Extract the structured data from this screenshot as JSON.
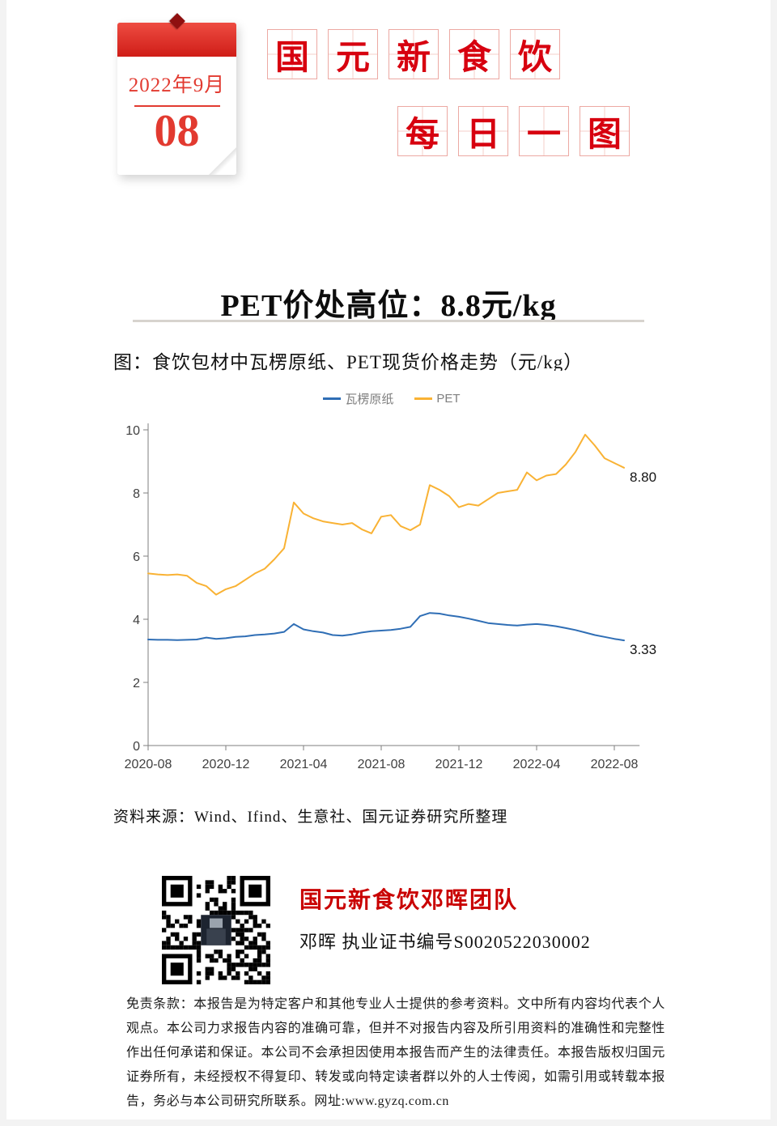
{
  "page": {
    "calendar": {
      "month_label": "2022年9月",
      "day": "08"
    },
    "brand_stamp": {
      "row1": [
        "国",
        "元",
        "新",
        "食",
        "饮"
      ],
      "row2": [
        "每",
        "日",
        "一",
        "图"
      ]
    },
    "headline": "PET价处高位：8.8元/kg",
    "source": "资料来源：Wind、Ifind、生意社、国元证券研究所整理",
    "team": {
      "title": "国元新食饮邓晖团队",
      "credential": "邓晖 执业证书编号S0020522030002",
      "website": "www.gyzq.com.cn"
    },
    "disclaimer": "免责条款：本报告是为特定客户和其他专业人士提供的参考资料。文中所有内容均代表个人观点。本公司力求报告内容的准确可靠，但并不对报告内容及所引用资料的准确性和完整性作出任何承诺和保证。本公司不会承担因使用本报告而产生的法律责任。本报告版权归国元证券所有，未经授权不得复印、转发或向特定读者群以外的人士传阅，如需引用或转载本报告，务必与本公司研究所联系。网址:www.gyzq.com.cn"
  },
  "chart_data": {
    "type": "line",
    "title": "图：食饮包材中瓦楞原纸、PET现货价格走势（元/kg）",
    "ylabel": "元/kg",
    "ylim": [
      0,
      10
    ],
    "y_ticks": [
      0,
      2,
      4,
      6,
      8,
      10
    ],
    "x_tick_labels": [
      "2020-08",
      "2020-12",
      "2021-04",
      "2021-08",
      "2021-12",
      "2022-04",
      "2022-08"
    ],
    "x_tick_positions": [
      0,
      4,
      8,
      12,
      16,
      20,
      24
    ],
    "x_range": [
      0,
      25.3
    ],
    "x_unit": "months since 2020-08",
    "x_step": 0.5,
    "grid": false,
    "legend_position": "top",
    "series": [
      {
        "name": "瓦楞原纸",
        "color": "#2f6eb5",
        "end_label": "3.33",
        "values": [
          3.36,
          3.35,
          3.35,
          3.34,
          3.35,
          3.36,
          3.42,
          3.38,
          3.4,
          3.44,
          3.46,
          3.5,
          3.52,
          3.55,
          3.6,
          3.85,
          3.68,
          3.62,
          3.58,
          3.5,
          3.48,
          3.52,
          3.58,
          3.62,
          3.64,
          3.66,
          3.7,
          3.76,
          4.1,
          4.2,
          4.18,
          4.12,
          4.08,
          4.02,
          3.95,
          3.88,
          3.85,
          3.82,
          3.8,
          3.83,
          3.85,
          3.82,
          3.78,
          3.72,
          3.66,
          3.58,
          3.5,
          3.44,
          3.38,
          3.33
        ]
      },
      {
        "name": "PET",
        "color": "#f9b234",
        "end_label": "8.80",
        "values": [
          5.45,
          5.42,
          5.4,
          5.42,
          5.38,
          5.15,
          5.05,
          4.78,
          4.95,
          5.05,
          5.25,
          5.45,
          5.6,
          5.9,
          6.25,
          7.7,
          7.35,
          7.2,
          7.1,
          7.05,
          7.0,
          7.05,
          6.85,
          6.72,
          7.25,
          7.3,
          6.95,
          6.82,
          7.0,
          8.25,
          8.1,
          7.9,
          7.55,
          7.65,
          7.6,
          7.8,
          8.0,
          8.05,
          8.1,
          8.65,
          8.4,
          8.55,
          8.6,
          8.9,
          9.3,
          9.85,
          9.5,
          9.1,
          8.95,
          8.8
        ]
      }
    ]
  },
  "colors": {
    "accent_red": "#d7000f",
    "calendar_red": "#e23a30",
    "team_red": "#c90000",
    "axis_gray": "#7f7f7f"
  }
}
